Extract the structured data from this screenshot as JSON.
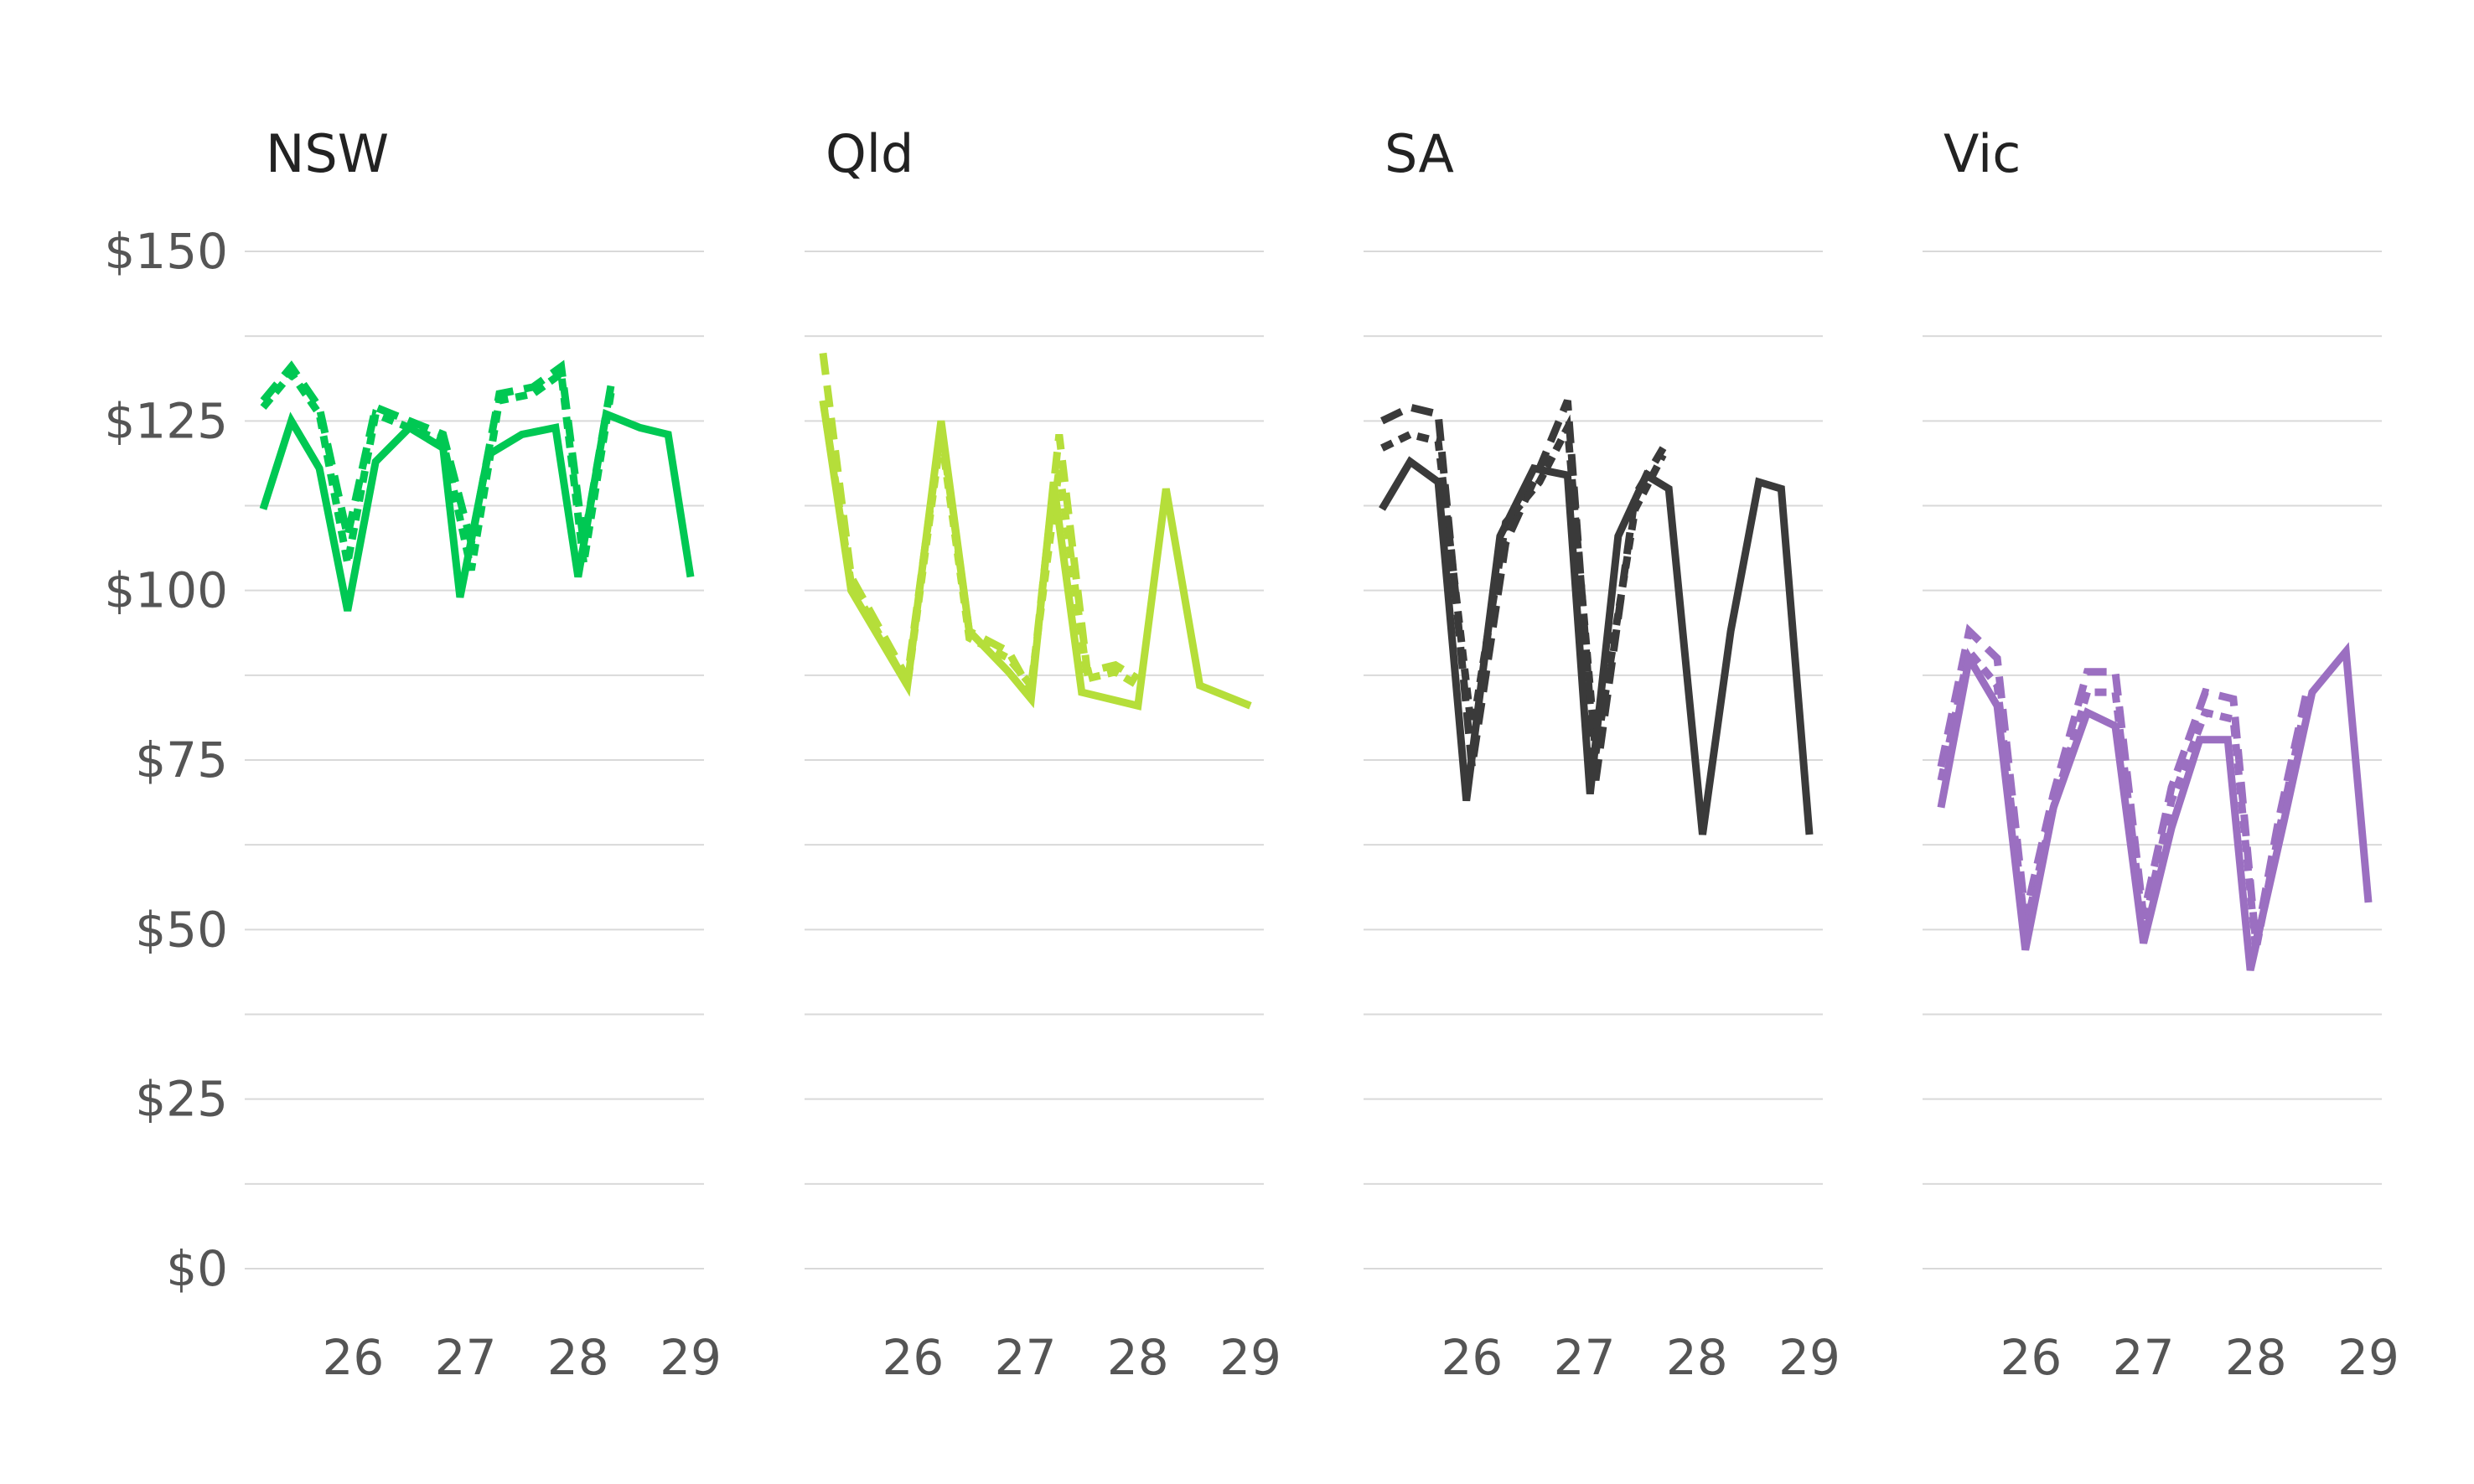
{
  "chart_data": {
    "type": "line",
    "layout": "small-multiples",
    "ylim": [
      0,
      150
    ],
    "yticks": [
      0,
      25,
      50,
      75,
      100,
      125,
      150
    ],
    "ytick_labels": [
      "$0",
      "$25",
      "$50",
      "$75",
      "$100",
      "$125",
      "$150"
    ],
    "xlim": [
      25.2,
      29.0
    ],
    "xticks": [
      26,
      27,
      28,
      29
    ],
    "xtick_labels": [
      "26",
      "27",
      "28",
      "29"
    ],
    "grid": true,
    "legend": "none",
    "panels": [
      {
        "title": "NSW",
        "color": "#00c853",
        "series": [
          {
            "style": "dotted",
            "x": [
              25.2,
              25.45,
              25.7,
              25.95,
              26.2,
              26.5,
              26.8,
              27.05,
              27.3,
              27.6,
              27.85,
              28.05,
              28.3
            ],
            "y": [
              127,
              132,
              126,
              104,
              126,
              124,
              122,
              103,
              128,
              129,
              132,
              104,
              130
            ]
          },
          {
            "style": "dashed",
            "x": [
              25.2,
              25.45,
              25.7,
              25.95,
              26.2,
              26.5,
              26.8,
              27.05,
              27.3,
              27.6,
              27.85,
              28.05,
              28.3
            ],
            "y": [
              128,
              133,
              127,
              108,
              127,
              125,
              123,
              107,
              129,
              130,
              133,
              107,
              131
            ]
          },
          {
            "style": "solid",
            "x": [
              25.2,
              25.45,
              25.7,
              25.95,
              26.2,
              26.5,
              26.8,
              26.95,
              27.2,
              27.5,
              27.8,
              28.0,
              28.25,
              28.55,
              28.8,
              29.0
            ],
            "y": [
              112,
              125,
              118,
              97,
              119,
              124,
              121,
              99,
              120,
              123,
              124,
              102,
              126,
              124,
              123,
              102
            ]
          }
        ]
      },
      {
        "title": "Qld",
        "color": "#b5de3a",
        "series": [
          {
            "style": "dotted",
            "x": [
              25.2,
              25.45,
              25.95,
              26.25,
              26.5,
              26.85,
              27.05,
              27.3,
              27.55,
              27.8,
              28.0
            ],
            "y": [
              128,
              101,
              86,
              123,
              93,
              90,
              86,
              118,
              87,
              88,
              86
            ]
          },
          {
            "style": "dashed",
            "x": [
              25.2,
              25.45,
              25.95,
              26.25,
              26.5,
              26.85,
              27.05,
              27.3,
              27.55,
              27.8,
              28.0
            ],
            "y": [
              135,
              102,
              87,
              124,
              94,
              91,
              85,
              123,
              88,
              89,
              87
            ]
          },
          {
            "style": "solid",
            "x": [
              25.2,
              25.45,
              25.95,
              26.25,
              26.5,
              26.85,
              27.05,
              27.25,
              27.5,
              28.0,
              28.25,
              28.55,
              29.0
            ],
            "y": [
              128,
              100,
              86,
              125,
              94,
              88,
              84,
              116,
              85,
              83,
              115,
              86,
              83
            ]
          }
        ]
      },
      {
        "title": "SA",
        "color": "#3a3a3a",
        "series": [
          {
            "style": "dashed",
            "x": [
              25.2,
              25.45,
              25.7,
              26.0,
              26.3,
              26.6,
              26.85,
              27.1,
              27.45,
              27.7
            ],
            "y": [
              125,
              127,
              126,
              74,
              107,
              118,
              128,
              72,
              114,
              121
            ]
          },
          {
            "style": "dotted",
            "x": [
              25.2,
              25.45,
              25.7,
              26.0,
              26.3,
              26.6,
              26.85,
              27.1,
              27.45,
              27.7
            ],
            "y": [
              121,
              123,
              122,
              79,
              110,
              116,
              124,
              76,
              112,
              120
            ]
          },
          {
            "style": "solid",
            "x": [
              25.2,
              25.45,
              25.7,
              25.95,
              26.25,
              26.55,
              26.85,
              27.05,
              27.3,
              27.55,
              27.75,
              28.05,
              28.3,
              28.55,
              28.75,
              29.0
            ],
            "y": [
              112,
              119,
              116,
              69,
              108,
              118,
              117,
              70,
              108,
              117,
              115,
              64,
              94,
              116,
              115,
              64
            ]
          }
        ]
      },
      {
        "title": "Vic",
        "color": "#9b6fc1",
        "series": [
          {
            "style": "dashed",
            "x": [
              25.2,
              25.45,
              25.7,
              25.95,
              26.2,
              26.5,
              26.75,
              27.0,
              27.25,
              27.55,
              27.8,
              28.0,
              28.2,
              28.45
            ],
            "y": [
              74,
              94,
              90,
              52,
              70,
              88,
              88,
              52,
              71,
              85,
              84,
              48,
              66,
              85
            ]
          },
          {
            "style": "dotted",
            "x": [
              25.2,
              25.45,
              25.7,
              25.95,
              26.2,
              26.5,
              26.75,
              27.0,
              27.25,
              27.55,
              27.8,
              28.0,
              28.2,
              28.45
            ],
            "y": [
              72,
              91,
              86,
              50,
              68,
              85,
              85,
              50,
              69,
              82,
              81,
              47,
              64,
              84
            ]
          },
          {
            "style": "solid",
            "x": [
              25.2,
              25.45,
              25.7,
              25.95,
              26.2,
              26.5,
              26.75,
              27.0,
              27.25,
              27.5,
              27.75,
              27.95,
              28.25,
              28.5,
              28.8,
              29.0
            ],
            "y": [
              68,
              90,
              83,
              47,
              68,
              82,
              80,
              48,
              65,
              78,
              78,
              44,
              66,
              85,
              91,
              54
            ]
          }
        ]
      }
    ]
  }
}
